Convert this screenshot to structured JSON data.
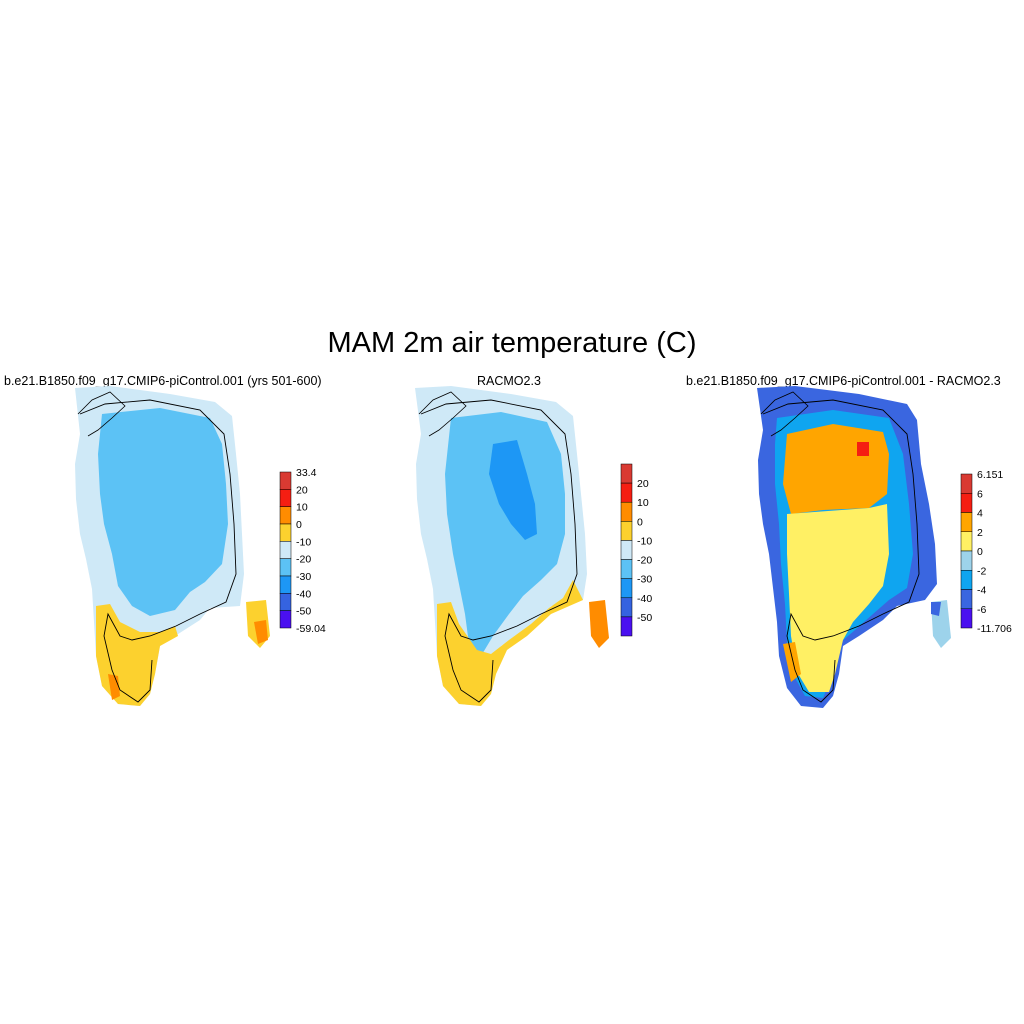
{
  "title": "MAM 2m air temperature (C)",
  "panels": [
    {
      "title": "b.e21.B1850.f09_g17.CMIP6-piControl.001 (yrs 501-600)",
      "colorbar": {
        "labels": [
          "33.4",
          "20",
          "10",
          "0",
          "-10",
          "-20",
          "-30",
          "-40",
          "-50",
          "-59.04"
        ],
        "colors": [
          "#d93a32",
          "#f51e12",
          "#ff8c00",
          "#fcd12e",
          "#cfe9f7",
          "#5cc2f5",
          "#1d97f5",
          "#3563e0",
          "#4a10f0"
        ]
      }
    },
    {
      "title": "RACMO2.3",
      "colorbar": {
        "labels": [
          "20",
          "10",
          "0",
          "-10",
          "-20",
          "-30",
          "-40",
          "-50"
        ],
        "colors": [
          "#d93a32",
          "#f51e12",
          "#ff8c00",
          "#fcd12e",
          "#cfe9f7",
          "#5cc2f5",
          "#1d97f5",
          "#3563e0",
          "#4a10f0"
        ]
      }
    },
    {
      "title": "b.e21.B1850.f09_g17.CMIP6-piControl.001 - RACMO2.3",
      "colorbar": {
        "labels": [
          "6.151",
          "6",
          "4",
          "2",
          "0",
          "-2",
          "-4",
          "-6",
          "-11.706"
        ],
        "colors": [
          "#d93a32",
          "#f51e12",
          "#ffa500",
          "#fff064",
          "#9dd3eb",
          "#0fa5f0",
          "#3a66e0",
          "#4a10f0"
        ]
      }
    }
  ]
}
